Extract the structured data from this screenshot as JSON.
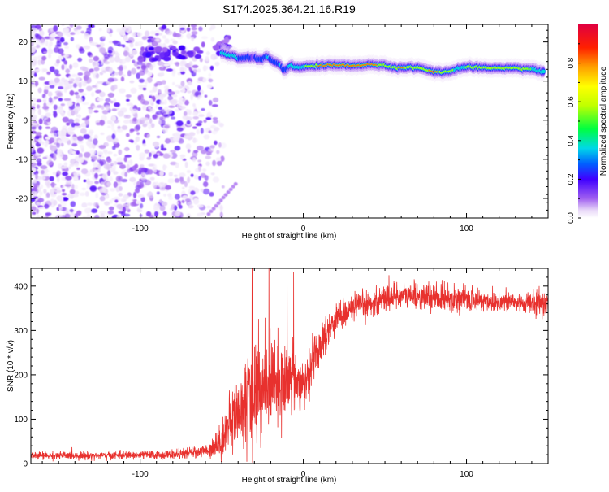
{
  "title": "S174.2025.364.21.16.R19",
  "chart_data": [
    {
      "type": "heatmap",
      "name": "spectrogram",
      "xlabel": "Height of straight line (km)",
      "ylabel": "Frequency (Hz)",
      "xlim": [
        -167,
        150
      ],
      "ylim": [
        -25,
        24.5
      ],
      "x_ticks": [
        -100,
        0,
        100
      ],
      "y_ticks": [
        20,
        10,
        0,
        -10,
        -20
      ],
      "colorbar": {
        "label": "Normalized spectral amplitude",
        "range": [
          0,
          1
        ],
        "ticks": [
          0.0,
          0.2,
          0.4,
          0.6,
          0.8
        ],
        "tick_labels": [
          "0.0",
          "0.2",
          "0.4",
          "0.6",
          "0.8"
        ],
        "colors": [
          "#ffffff",
          "#e8d8f8",
          "#a060f0",
          "#4000ff",
          "#0060ff",
          "#00d8e8",
          "#00ff40",
          "#c0ff00",
          "#ffff00",
          "#ffa000",
          "#ff2000",
          "#e00040"
        ]
      },
      "ridge": {
        "x": [
          -50,
          -44,
          -40,
          -36,
          -30,
          -26,
          -22,
          -18,
          -14,
          -12,
          -8,
          -4,
          0,
          10,
          20,
          30,
          40,
          50,
          55,
          60,
          70,
          80,
          90,
          95,
          100,
          110,
          120,
          130,
          140,
          148
        ],
        "freq": [
          17.2,
          16.5,
          15.8,
          16.0,
          15.9,
          15.5,
          16.3,
          15.0,
          14.2,
          12.8,
          14.0,
          13.4,
          13.6,
          14.0,
          14.1,
          14.0,
          14.1,
          14.1,
          13.5,
          13.4,
          13.5,
          12.4,
          12.4,
          13.2,
          13.6,
          13.3,
          13.4,
          13.3,
          13.1,
          12.2
        ],
        "amp": [
          0.45,
          0.5,
          0.45,
          0.35,
          0.3,
          0.4,
          0.45,
          0.4,
          0.45,
          0.4,
          0.45,
          0.5,
          0.55,
          0.85,
          0.95,
          0.95,
          0.95,
          0.75,
          0.65,
          0.9,
          0.6,
          0.9,
          0.7,
          0.5,
          0.6,
          0.8,
          0.7,
          0.65,
          0.6,
          0.5
        ]
      }
    },
    {
      "type": "line",
      "name": "snr",
      "xlabel": "Height of straight line (km)",
      "ylabel": "SNR (10 * v/v)",
      "xlim": [
        -167,
        150
      ],
      "ylim": [
        0,
        440
      ],
      "x_ticks": [
        -100,
        0,
        100
      ],
      "y_ticks": [
        0,
        100,
        200,
        300,
        400
      ],
      "color": "#e8312e",
      "envelope_x": [
        -167,
        -120,
        -80,
        -60,
        -52,
        -45,
        -40,
        -35,
        -30,
        -25,
        -20,
        -15,
        -10,
        -5,
        0,
        5,
        10,
        15,
        20,
        30,
        40,
        50,
        60,
        80,
        100,
        120,
        150
      ],
      "envelope_mean": [
        18,
        18,
        20,
        28,
        45,
        90,
        110,
        140,
        150,
        170,
        200,
        160,
        190,
        200,
        165,
        230,
        260,
        300,
        330,
        350,
        360,
        375,
        380,
        375,
        370,
        365,
        360
      ],
      "envelope_noise": [
        8,
        8,
        9,
        12,
        30,
        60,
        70,
        90,
        110,
        110,
        100,
        80,
        70,
        60,
        50,
        45,
        40,
        35,
        30,
        28,
        28,
        28,
        28,
        26,
        25,
        24,
        24
      ]
    }
  ]
}
